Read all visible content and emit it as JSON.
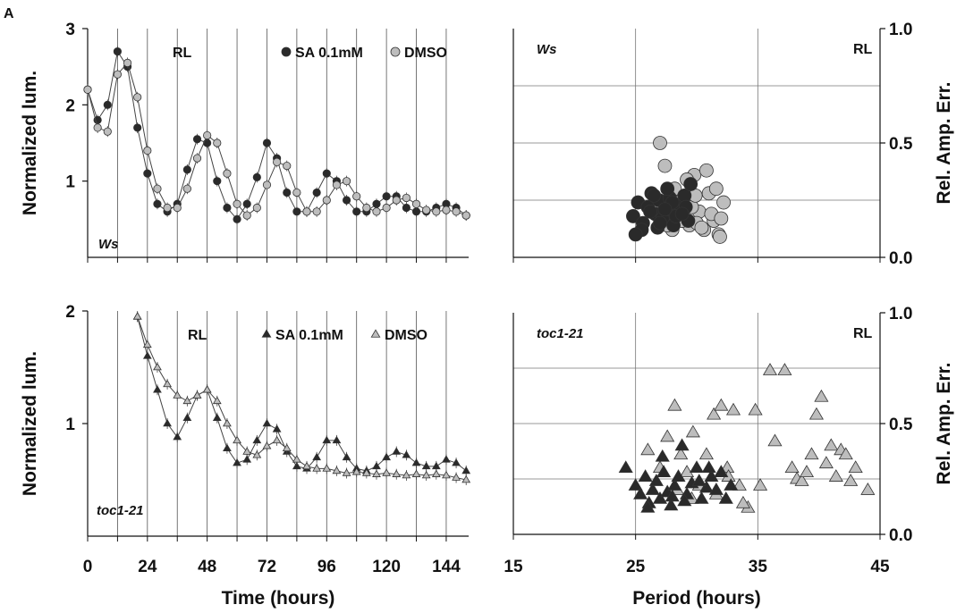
{
  "panel_label": "A",
  "chart_data": [
    {
      "id": "ws-timecourse",
      "type": "line",
      "ylabel": "Normalized lum.",
      "xticks": [
        0,
        24,
        48,
        72,
        96,
        120,
        144
      ],
      "yticks": [
        1,
        2,
        3
      ],
      "xlim": [
        0,
        153
      ],
      "ylim": [
        0,
        3
      ],
      "annotation": "RL",
      "genotype": "Ws",
      "marker": "circle",
      "grid": "vertical lines every 12 h",
      "legend": "top-right",
      "series": [
        {
          "name": "SA 0.1mM",
          "color": "#2a2a2a",
          "x": [
            0,
            4,
            8,
            12,
            16,
            20,
            24,
            28,
            32,
            36,
            40,
            44,
            48,
            52,
            56,
            60,
            64,
            68,
            72,
            76,
            80,
            84,
            88,
            92,
            96,
            100,
            104,
            108,
            112,
            116,
            120,
            124,
            128,
            132,
            136,
            140,
            144,
            148,
            152
          ],
          "y": [
            2.2,
            1.8,
            2.0,
            2.7,
            2.5,
            1.7,
            1.1,
            0.7,
            0.6,
            0.7,
            1.15,
            1.55,
            1.5,
            1.0,
            0.65,
            0.5,
            0.7,
            1.05,
            1.5,
            1.3,
            0.85,
            0.6,
            0.6,
            0.85,
            1.1,
            1.0,
            0.75,
            0.6,
            0.6,
            0.7,
            0.8,
            0.8,
            0.65,
            0.6,
            0.6,
            0.65,
            0.7,
            0.65,
            0.55
          ]
        },
        {
          "name": "DMSO",
          "color": "#bdbdbd",
          "x": [
            0,
            4,
            8,
            12,
            16,
            20,
            24,
            28,
            32,
            36,
            40,
            44,
            48,
            52,
            56,
            60,
            64,
            68,
            72,
            76,
            80,
            84,
            88,
            92,
            96,
            100,
            104,
            108,
            112,
            116,
            120,
            124,
            128,
            132,
            136,
            140,
            144,
            148,
            152
          ],
          "y": [
            2.2,
            1.7,
            1.65,
            2.4,
            2.55,
            2.1,
            1.4,
            0.9,
            0.65,
            0.65,
            0.9,
            1.3,
            1.6,
            1.5,
            1.1,
            0.7,
            0.55,
            0.65,
            0.95,
            1.25,
            1.2,
            0.85,
            0.6,
            0.6,
            0.75,
            0.95,
            1.0,
            0.8,
            0.65,
            0.6,
            0.65,
            0.75,
            0.78,
            0.7,
            0.62,
            0.6,
            0.62,
            0.6,
            0.55
          ]
        }
      ]
    },
    {
      "id": "ws-rae",
      "type": "scatter",
      "xlabel": "Period (hours)",
      "ylabel": "Rel. Amp. Err.",
      "xticks": [
        15,
        25,
        35,
        45
      ],
      "yticks": [
        0.0,
        0.5,
        1.0
      ],
      "ytick_labels": [
        "0.0",
        "0.5",
        "1.0"
      ],
      "xlim": [
        15,
        45
      ],
      "ylim": [
        0,
        1
      ],
      "annotation": "RL",
      "genotype": "Ws",
      "marker": "circle",
      "grid": "on",
      "series": [
        {
          "name": "SA 0.1mM",
          "color": "#2a2a2a",
          "x": [
            24.8,
            25.2,
            25.6,
            26.0,
            26.3,
            26.6,
            26.9,
            27.2,
            27.5,
            27.8,
            28.1,
            28.4,
            28.7,
            29.0,
            29.3,
            25.5,
            26.8,
            27.6,
            28.3,
            29.1,
            25.0,
            26.2,
            27.0,
            28.0,
            28.8,
            29.5,
            26.5,
            27.4
          ],
          "y": [
            0.18,
            0.24,
            0.15,
            0.22,
            0.28,
            0.19,
            0.25,
            0.17,
            0.21,
            0.26,
            0.14,
            0.23,
            0.2,
            0.27,
            0.16,
            0.12,
            0.13,
            0.3,
            0.18,
            0.22,
            0.1,
            0.2,
            0.15,
            0.24,
            0.19,
            0.32,
            0.27,
            0.21
          ]
        },
        {
          "name": "DMSO",
          "color": "#bdbdbd",
          "x": [
            27.0,
            27.4,
            27.8,
            28.2,
            28.6,
            29.0,
            29.4,
            29.8,
            30.2,
            30.6,
            31.0,
            31.4,
            31.8,
            32.2,
            28.0,
            29.2,
            30.0,
            30.8,
            31.6,
            28.8,
            29.6,
            30.4,
            31.2,
            27.6,
            28.4,
            31.9,
            32.0,
            29.9
          ],
          "y": [
            0.5,
            0.4,
            0.22,
            0.3,
            0.18,
            0.26,
            0.14,
            0.36,
            0.2,
            0.12,
            0.28,
            0.16,
            0.1,
            0.24,
            0.12,
            0.34,
            0.15,
            0.38,
            0.3,
            0.16,
            0.22,
            0.13,
            0.19,
            0.14,
            0.24,
            0.09,
            0.17,
            0.27
          ]
        }
      ]
    },
    {
      "id": "toc1-timecourse",
      "type": "line",
      "xlabel": "Time (hours)",
      "ylabel": "Normalized lum.",
      "xticks": [
        0,
        24,
        48,
        72,
        96,
        120,
        144
      ],
      "yticks": [
        1,
        2
      ],
      "xlim": [
        0,
        153
      ],
      "ylim": [
        0,
        2
      ],
      "annotation": "RL",
      "genotype": "toc1-21",
      "marker": "triangle",
      "grid": "vertical lines every 12 h",
      "legend": "top-right",
      "series": [
        {
          "name": "SA 0.1mM",
          "color": "#2a2a2a",
          "x": [
            20,
            24,
            28,
            32,
            36,
            40,
            44,
            48,
            52,
            56,
            60,
            64,
            68,
            72,
            76,
            80,
            84,
            88,
            92,
            96,
            100,
            104,
            108,
            112,
            116,
            120,
            124,
            128,
            132,
            136,
            140,
            144,
            148,
            152
          ],
          "y": [
            1.95,
            1.6,
            1.3,
            1.0,
            0.88,
            1.05,
            1.25,
            1.3,
            1.05,
            0.78,
            0.65,
            0.68,
            0.85,
            1.0,
            0.95,
            0.75,
            0.62,
            0.6,
            0.7,
            0.85,
            0.85,
            0.7,
            0.6,
            0.58,
            0.62,
            0.7,
            0.75,
            0.72,
            0.65,
            0.62,
            0.62,
            0.68,
            0.65,
            0.58
          ]
        },
        {
          "name": "DMSO",
          "color": "#bdbdbd",
          "x": [
            20,
            24,
            28,
            32,
            36,
            40,
            44,
            48,
            52,
            56,
            60,
            64,
            68,
            72,
            76,
            80,
            84,
            88,
            92,
            96,
            100,
            104,
            108,
            112,
            116,
            120,
            124,
            128,
            132,
            136,
            140,
            144,
            148,
            152
          ],
          "y": [
            1.95,
            1.7,
            1.5,
            1.35,
            1.25,
            1.2,
            1.25,
            1.3,
            1.2,
            1.0,
            0.85,
            0.75,
            0.72,
            0.8,
            0.85,
            0.78,
            0.68,
            0.62,
            0.6,
            0.6,
            0.58,
            0.56,
            0.57,
            0.56,
            0.55,
            0.56,
            0.55,
            0.54,
            0.55,
            0.54,
            0.55,
            0.54,
            0.52,
            0.5
          ]
        }
      ]
    },
    {
      "id": "toc1-rae",
      "type": "scatter",
      "xlabel": "Period (hours)",
      "ylabel": "Rel. Amp. Err.",
      "xticks": [
        15,
        25,
        35,
        45
      ],
      "yticks": [
        0.0,
        0.5,
        1.0
      ],
      "ytick_labels": [
        "0.0",
        "0.5",
        "1.0"
      ],
      "xlim": [
        15,
        45
      ],
      "ylim": [
        0,
        1
      ],
      "annotation": "RL",
      "genotype": "toc1-21",
      "marker": "triangle",
      "grid": "on",
      "series": [
        {
          "name": "SA 0.1mM",
          "color": "#2a2a2a",
          "x": [
            24.2,
            25.0,
            25.4,
            25.8,
            26.1,
            26.4,
            26.7,
            27.0,
            27.3,
            27.6,
            27.9,
            28.2,
            28.5,
            28.8,
            29.2,
            29.6,
            30.0,
            30.4,
            30.8,
            31.2,
            31.6,
            32.0,
            32.4,
            32.8,
            26.0,
            27.2,
            28.0,
            29.0,
            30.2,
            31.0
          ],
          "y": [
            0.3,
            0.22,
            0.18,
            0.26,
            0.14,
            0.2,
            0.24,
            0.16,
            0.28,
            0.19,
            0.13,
            0.22,
            0.26,
            0.4,
            0.18,
            0.23,
            0.3,
            0.16,
            0.21,
            0.26,
            0.2,
            0.28,
            0.16,
            0.22,
            0.12,
            0.35,
            0.17,
            0.15,
            0.24,
            0.3
          ]
        },
        {
          "name": "DMSO",
          "color": "#bdbdbd",
          "x": [
            26.0,
            27.0,
            27.6,
            28.2,
            28.7,
            29.2,
            29.7,
            30.2,
            30.8,
            31.4,
            32.0,
            32.5,
            33.0,
            33.5,
            34.2,
            34.8,
            35.2,
            36.0,
            36.4,
            37.2,
            37.8,
            38.2,
            38.6,
            39.0,
            39.4,
            39.8,
            40.2,
            40.6,
            41.0,
            41.4,
            41.8,
            42.2,
            42.6,
            43.0,
            44.0,
            28.4,
            29.6,
            31.6,
            32.6,
            33.8
          ],
          "y": [
            0.38,
            0.3,
            0.44,
            0.58,
            0.36,
            0.28,
            0.46,
            0.22,
            0.36,
            0.54,
            0.58,
            0.3,
            0.56,
            0.22,
            0.12,
            0.56,
            0.22,
            0.74,
            0.42,
            0.74,
            0.3,
            0.25,
            0.24,
            0.28,
            0.36,
            0.54,
            0.62,
            0.32,
            0.4,
            0.26,
            0.38,
            0.36,
            0.24,
            0.3,
            0.2,
            0.2,
            0.16,
            0.18,
            0.26,
            0.14
          ]
        }
      ]
    }
  ]
}
